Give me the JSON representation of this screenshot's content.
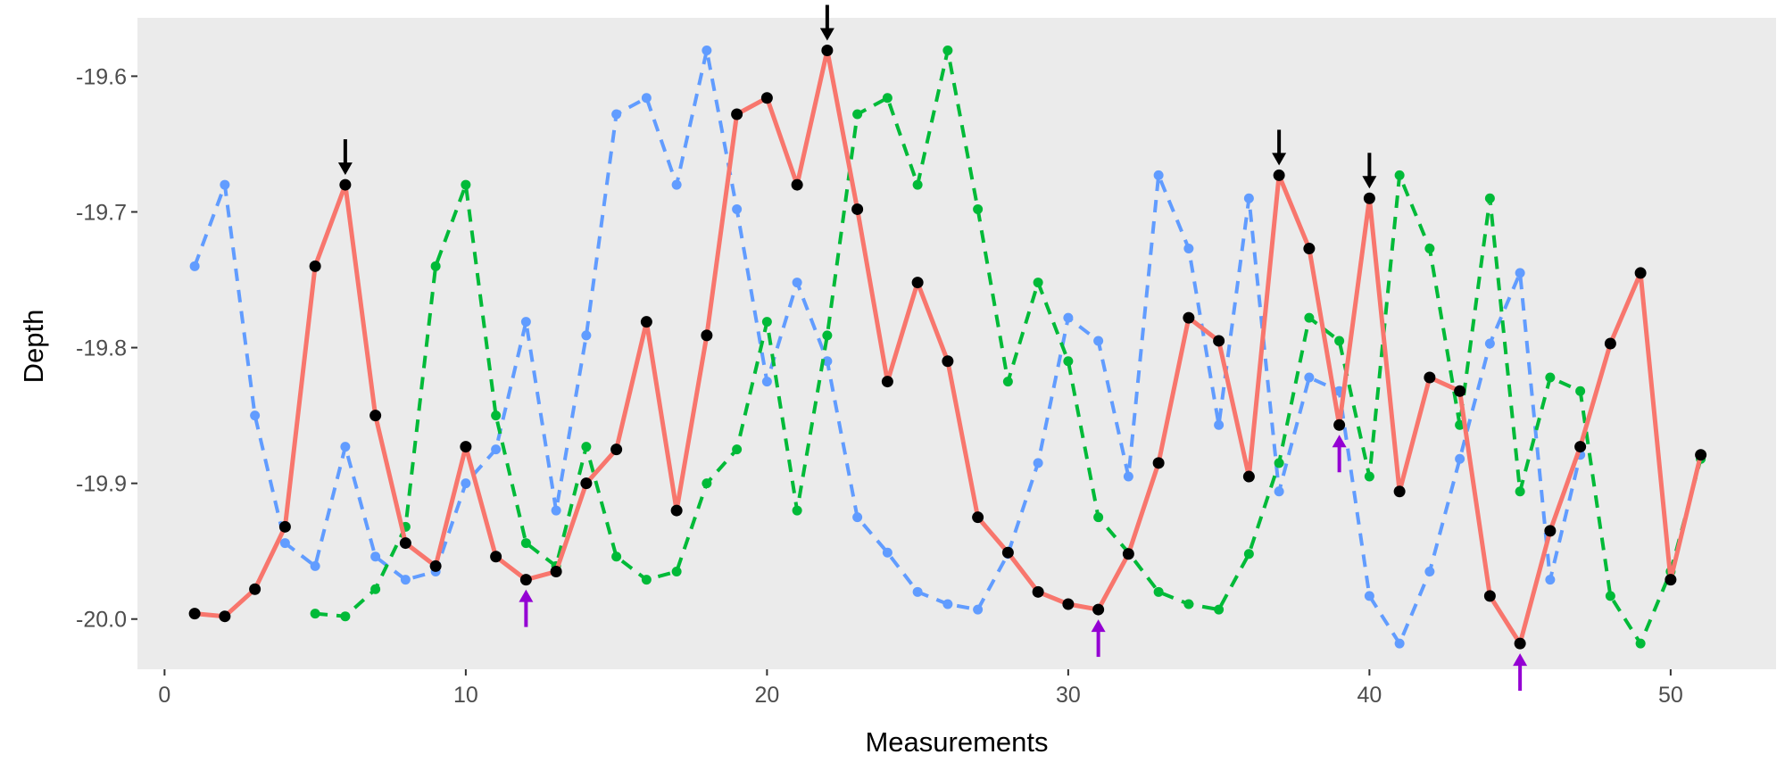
{
  "chart_data": {
    "type": "line",
    "title": "",
    "xlabel": "Measurements",
    "ylabel": "Depth",
    "xlim": [
      -0.9,
      53.5
    ],
    "ylim": [
      -20.037,
      -19.557
    ],
    "xticks": [
      0,
      10,
      20,
      30,
      40,
      50
    ],
    "yticks": [
      -19.6,
      -19.7,
      -19.8,
      -19.9,
      -20.0
    ],
    "ytick_labels": [
      "-19.6",
      "-19.7",
      "-19.8",
      "-19.9",
      "-20.0"
    ],
    "grid": false,
    "legend": "none",
    "series": [
      {
        "color": "#F8766D",
        "line_style": "solid",
        "marker_color": "#000000",
        "x": [
          1,
          2,
          3,
          4,
          5,
          6,
          7,
          8,
          9,
          10,
          11,
          12,
          13,
          14,
          15,
          16,
          17,
          18,
          19,
          20,
          21,
          22,
          23,
          24,
          25,
          26,
          27,
          28,
          29,
          30,
          31,
          32,
          33,
          34,
          35,
          36,
          37,
          38,
          39,
          40,
          41,
          42,
          43,
          44,
          45,
          46,
          47,
          48,
          49,
          50,
          51
        ],
        "values": [
          -19.996,
          -19.998,
          -19.978,
          -19.932,
          -19.74,
          -19.68,
          -19.85,
          -19.944,
          -19.961,
          -19.873,
          -19.954,
          -19.971,
          -19.965,
          -19.9,
          -19.875,
          -19.781,
          -19.92,
          -19.791,
          -19.628,
          -19.616,
          -19.68,
          -19.581,
          -19.698,
          -19.825,
          -19.752,
          -19.81,
          -19.925,
          -19.951,
          -19.98,
          -19.989,
          -19.993,
          -19.952,
          -19.885,
          -19.778,
          -19.795,
          -19.895,
          -19.673,
          -19.727,
          -19.857,
          -19.69,
          -19.906,
          -19.822,
          -19.832,
          -19.983,
          -20.018,
          -19.935,
          -19.873,
          -19.797,
          -19.745,
          -19.971,
          -19.879
        ]
      },
      {
        "color": "#619CFF",
        "line_style": "dashed",
        "x": [
          1,
          2,
          3,
          4,
          5,
          6,
          7,
          8,
          9,
          10,
          11,
          12,
          13,
          14,
          15,
          16,
          17,
          18,
          19,
          20,
          21,
          22,
          23,
          24,
          25,
          26,
          27,
          28,
          29,
          30,
          31,
          32,
          33,
          34,
          35,
          36,
          37,
          38,
          39,
          40,
          41,
          42,
          43,
          44,
          45,
          46,
          47
        ],
        "values": [
          -19.74,
          -19.68,
          -19.85,
          -19.944,
          -19.961,
          -19.873,
          -19.954,
          -19.971,
          -19.965,
          -19.9,
          -19.875,
          -19.781,
          -19.92,
          -19.791,
          -19.628,
          -19.616,
          -19.68,
          -19.581,
          -19.698,
          -19.825,
          -19.752,
          -19.81,
          -19.925,
          -19.951,
          -19.98,
          -19.989,
          -19.993,
          -19.952,
          -19.885,
          -19.778,
          -19.795,
          -19.895,
          -19.673,
          -19.727,
          -19.857,
          -19.69,
          -19.906,
          -19.822,
          -19.832,
          -19.983,
          -20.018,
          -19.965,
          -19.882,
          -19.797,
          -19.745,
          -19.971,
          -19.879
        ]
      },
      {
        "color": "#00BA38",
        "line_style": "dashed",
        "x": [
          5,
          6,
          7,
          8,
          9,
          10,
          11,
          12,
          13,
          14,
          15,
          16,
          17,
          18,
          19,
          20,
          21,
          22,
          23,
          24,
          25,
          26,
          27,
          28,
          29,
          30,
          31,
          32,
          33,
          34,
          35,
          36,
          37,
          38,
          39,
          40,
          41,
          42,
          43,
          44,
          45,
          46,
          47,
          48,
          49,
          50,
          51
        ],
        "values": [
          -19.996,
          -19.998,
          -19.978,
          -19.932,
          -19.74,
          -19.68,
          -19.85,
          -19.944,
          -19.961,
          -19.873,
          -19.954,
          -19.971,
          -19.965,
          -19.9,
          -19.875,
          -19.781,
          -19.92,
          -19.791,
          -19.628,
          -19.616,
          -19.68,
          -19.581,
          -19.698,
          -19.825,
          -19.752,
          -19.81,
          -19.925,
          -19.951,
          -19.98,
          -19.989,
          -19.993,
          -19.952,
          -19.885,
          -19.778,
          -19.795,
          -19.895,
          -19.673,
          -19.727,
          -19.857,
          -19.69,
          -19.906,
          -19.822,
          -19.832,
          -19.983,
          -20.018,
          -19.965,
          -19.882
        ]
      }
    ],
    "annotations": [
      {
        "type": "down-arrow",
        "color": "#000000",
        "x": 6,
        "y": -19.68
      },
      {
        "type": "down-arrow",
        "color": "#000000",
        "x": 22,
        "y": -19.581
      },
      {
        "type": "down-arrow",
        "color": "#000000",
        "x": 37,
        "y": -19.673
      },
      {
        "type": "down-arrow",
        "color": "#000000",
        "x": 40,
        "y": -19.69
      },
      {
        "type": "up-arrow",
        "color": "#9400D3",
        "x": 12,
        "y": -19.971
      },
      {
        "type": "up-arrow",
        "color": "#9400D3",
        "x": 31,
        "y": -19.993
      },
      {
        "type": "up-arrow",
        "color": "#9400D3",
        "x": 39,
        "y": -19.857
      },
      {
        "type": "up-arrow",
        "color": "#9400D3",
        "x": 45,
        "y": -20.018
      }
    ],
    "panel_background": "#EBEBEB"
  }
}
